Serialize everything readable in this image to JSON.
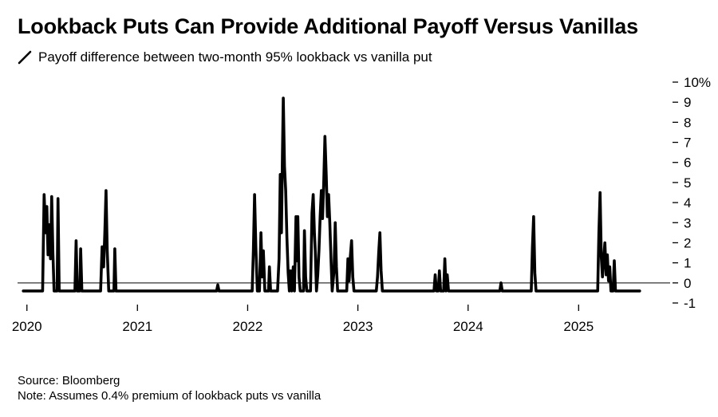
{
  "title": "Lookback Puts Can Provide Additional Payoff Versus Vanillas",
  "legend": {
    "icon": "diagonal-line-icon",
    "label": "Payoff difference between two-month 95% lookback vs vanilla put"
  },
  "footer": {
    "source": "Source: Bloomberg",
    "note": "Note: Assumes 0.4% premium of lookback puts vs vanilla"
  },
  "chart_data": {
    "type": "line",
    "title": "Lookback Puts Can Provide Additional Payoff Versus Vanillas",
    "subtitle": "Payoff difference between two-month 95% lookback vs vanilla put",
    "xlabel": "",
    "ylabel": "",
    "line_color": "#000000",
    "y_axis_position": "right",
    "ylim": [
      -1,
      10
    ],
    "y_ticks": [
      -1,
      0,
      1,
      2,
      3,
      4,
      5,
      6,
      7,
      8,
      9,
      10
    ],
    "y_tick_labels": [
      "-1",
      "0",
      "1",
      "2",
      "3",
      "4",
      "5",
      "6",
      "7",
      "8",
      "9",
      "10%"
    ],
    "zero_line": true,
    "grid": false,
    "xlim": [
      "2019-12-01",
      "2025-10-31"
    ],
    "x_ticks": [
      "2020-01-01",
      "2021-01-01",
      "2022-01-01",
      "2023-01-01",
      "2024-01-01",
      "2025-01-01"
    ],
    "x_tick_labels": [
      "2020",
      "2021",
      "2022",
      "2023",
      "2024",
      "2025"
    ],
    "series": [
      {
        "name": "Payoff difference between two-month 95% lookback vs vanilla put",
        "points": [
          [
            "2019-12-20",
            -0.4
          ],
          [
            "2020-02-22",
            -0.4
          ],
          [
            "2020-02-27",
            4.4
          ],
          [
            "2020-03-03",
            2.5
          ],
          [
            "2020-03-07",
            3.8
          ],
          [
            "2020-03-11",
            1.4
          ],
          [
            "2020-03-15",
            2.9
          ],
          [
            "2020-03-19",
            1.2
          ],
          [
            "2020-03-23",
            4.3
          ],
          [
            "2020-03-27",
            1.5
          ],
          [
            "2020-03-31",
            -0.4
          ],
          [
            "2020-04-10",
            -0.4
          ],
          [
            "2020-04-13",
            4.2
          ],
          [
            "2020-04-17",
            -0.4
          ],
          [
            "2020-06-08",
            -0.4
          ],
          [
            "2020-06-12",
            2.1
          ],
          [
            "2020-06-16",
            -0.4
          ],
          [
            "2020-06-24",
            -0.4
          ],
          [
            "2020-06-27",
            1.7
          ],
          [
            "2020-07-01",
            -0.4
          ],
          [
            "2020-09-01",
            -0.4
          ],
          [
            "2020-09-06",
            1.8
          ],
          [
            "2020-09-11",
            0.8
          ],
          [
            "2020-09-15",
            2.5
          ],
          [
            "2020-09-19",
            4.6
          ],
          [
            "2020-09-23",
            1.6
          ],
          [
            "2020-09-28",
            -0.4
          ],
          [
            "2020-10-15",
            -0.4
          ],
          [
            "2020-10-18",
            1.7
          ],
          [
            "2020-10-22",
            -0.4
          ],
          [
            "2021-09-20",
            -0.4
          ],
          [
            "2021-09-24",
            -0.1
          ],
          [
            "2021-09-28",
            -0.4
          ],
          [
            "2022-01-16",
            -0.4
          ],
          [
            "2022-01-20",
            1.6
          ],
          [
            "2022-01-24",
            4.4
          ],
          [
            "2022-01-28",
            1.8
          ],
          [
            "2022-02-02",
            -0.4
          ],
          [
            "2022-02-09",
            -0.4
          ],
          [
            "2022-02-14",
            2.5
          ],
          [
            "2022-02-18",
            0.3
          ],
          [
            "2022-02-22",
            1.6
          ],
          [
            "2022-02-27",
            -0.4
          ],
          [
            "2022-03-11",
            -0.4
          ],
          [
            "2022-03-14",
            0.8
          ],
          [
            "2022-03-18",
            -0.4
          ],
          [
            "2022-04-10",
            -0.4
          ],
          [
            "2022-04-15",
            1.2
          ],
          [
            "2022-04-19",
            5.4
          ],
          [
            "2022-04-23",
            2.5
          ],
          [
            "2022-04-26",
            6.3
          ],
          [
            "2022-04-29",
            9.2
          ],
          [
            "2022-05-03",
            5.8
          ],
          [
            "2022-05-07",
            4.6
          ],
          [
            "2022-05-11",
            2.3
          ],
          [
            "2022-05-15",
            0.5
          ],
          [
            "2022-05-19",
            -0.4
          ],
          [
            "2022-05-23",
            0.6
          ],
          [
            "2022-05-27",
            -0.4
          ],
          [
            "2022-06-01",
            0.8
          ],
          [
            "2022-06-05",
            -0.4
          ],
          [
            "2022-06-10",
            3.3
          ],
          [
            "2022-06-13",
            1.1
          ],
          [
            "2022-06-16",
            3.3
          ],
          [
            "2022-06-20",
            0.3
          ],
          [
            "2022-06-24",
            -0.4
          ],
          [
            "2022-07-05",
            -0.4
          ],
          [
            "2022-07-08",
            2.6
          ],
          [
            "2022-07-12",
            0.3
          ],
          [
            "2022-07-16",
            -0.4
          ],
          [
            "2022-07-28",
            -0.4
          ],
          [
            "2022-08-02",
            3.5
          ],
          [
            "2022-08-06",
            4.4
          ],
          [
            "2022-08-10",
            2.5
          ],
          [
            "2022-08-13",
            1.6
          ],
          [
            "2022-08-17",
            -0.4
          ],
          [
            "2022-08-21",
            0.4
          ],
          [
            "2022-08-25",
            1.6
          ],
          [
            "2022-08-29",
            3.3
          ],
          [
            "2022-09-02",
            4.6
          ],
          [
            "2022-09-06",
            3.2
          ],
          [
            "2022-09-10",
            5.0
          ],
          [
            "2022-09-14",
            7.3
          ],
          [
            "2022-09-18",
            5.4
          ],
          [
            "2022-09-22",
            3.3
          ],
          [
            "2022-09-26",
            4.4
          ],
          [
            "2022-09-30",
            3.0
          ],
          [
            "2022-10-04",
            1.2
          ],
          [
            "2022-10-08",
            -0.4
          ],
          [
            "2022-10-14",
            0.6
          ],
          [
            "2022-10-18",
            3.0
          ],
          [
            "2022-10-22",
            0.8
          ],
          [
            "2022-10-26",
            -0.4
          ],
          [
            "2022-11-25",
            -0.4
          ],
          [
            "2022-11-29",
            1.2
          ],
          [
            "2022-12-03",
            0.1
          ],
          [
            "2022-12-07",
            1.3
          ],
          [
            "2022-12-11",
            2.1
          ],
          [
            "2022-12-15",
            0.3
          ],
          [
            "2022-12-19",
            -0.4
          ],
          [
            "2023-03-03",
            -0.4
          ],
          [
            "2023-03-07",
            0.3
          ],
          [
            "2023-03-11",
            1.5
          ],
          [
            "2023-03-15",
            2.5
          ],
          [
            "2023-03-19",
            0.6
          ],
          [
            "2023-03-23",
            -0.4
          ],
          [
            "2023-09-10",
            -0.4
          ],
          [
            "2023-09-14",
            0.4
          ],
          [
            "2023-09-18",
            -0.4
          ],
          [
            "2023-09-24",
            -0.4
          ],
          [
            "2023-09-28",
            0.6
          ],
          [
            "2023-10-02",
            -0.4
          ],
          [
            "2023-10-12",
            -0.4
          ],
          [
            "2023-10-16",
            1.2
          ],
          [
            "2023-10-20",
            -0.4
          ],
          [
            "2023-10-24",
            0.4
          ],
          [
            "2023-10-28",
            -0.4
          ],
          [
            "2024-04-15",
            -0.4
          ],
          [
            "2024-04-19",
            0.0
          ],
          [
            "2024-04-23",
            -0.4
          ],
          [
            "2024-07-28",
            -0.4
          ],
          [
            "2024-08-01",
            1.8
          ],
          [
            "2024-08-05",
            3.3
          ],
          [
            "2024-08-09",
            0.5
          ],
          [
            "2024-08-13",
            -0.4
          ],
          [
            "2025-03-05",
            -0.4
          ],
          [
            "2025-03-09",
            2.5
          ],
          [
            "2025-03-13",
            4.5
          ],
          [
            "2025-03-17",
            1.3
          ],
          [
            "2025-03-21",
            0.3
          ],
          [
            "2025-03-25",
            1.2
          ],
          [
            "2025-03-29",
            2.0
          ],
          [
            "2025-04-02",
            0.4
          ],
          [
            "2025-04-06",
            1.4
          ],
          [
            "2025-04-10",
            0.1
          ],
          [
            "2025-04-14",
            0.8
          ],
          [
            "2025-04-18",
            -0.4
          ],
          [
            "2025-04-25",
            -0.4
          ],
          [
            "2025-04-29",
            1.1
          ],
          [
            "2025-05-03",
            -0.4
          ],
          [
            "2025-07-22",
            -0.4
          ]
        ]
      }
    ]
  }
}
